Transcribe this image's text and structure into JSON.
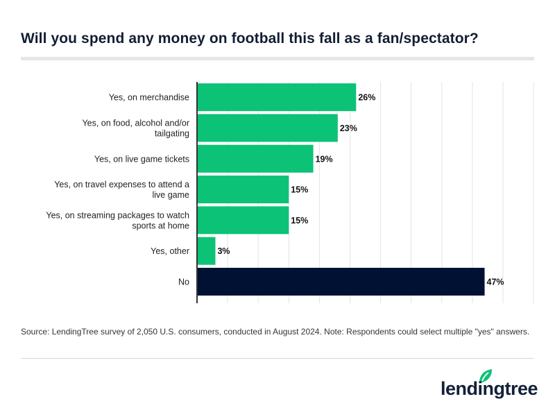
{
  "chart_data": {
    "type": "bar",
    "orientation": "horizontal",
    "title": "Will you spend any money on football this fall as a fan/spectator?",
    "categories": [
      "Yes, on merchandise",
      "Yes, on food, alcohol and/or tailgating",
      "Yes, on live game tickets",
      "Yes, on travel expenses to attend a live game",
      "Yes, on streaming packages to watch sports at home",
      "Yes, other",
      "No"
    ],
    "values": [
      26,
      23,
      19,
      15,
      15,
      3,
      47
    ],
    "data_labels": [
      "26%",
      "23%",
      "19%",
      "15%",
      "15%",
      "3%",
      "47%"
    ],
    "bar_colors": [
      "#0cc277",
      "#0cc277",
      "#0cc277",
      "#0cc277",
      "#0cc277",
      "#0cc277",
      "#011133"
    ],
    "xlim": [
      0,
      55
    ],
    "grid": true,
    "xlabel": "",
    "ylabel": ""
  },
  "source": "Source: LendingTree survey of 2,050 U.S. consumers, conducted in August 2024. Note: Respondents could select multiple \"yes\" answers.",
  "logo": {
    "text": "lendingtree",
    "icon": "leaf-icon",
    "color": "#0cc277"
  }
}
